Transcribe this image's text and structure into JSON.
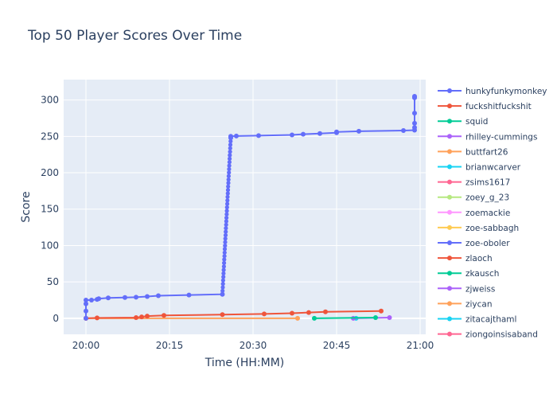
{
  "chart_data": {
    "type": "line",
    "title": "Top 50 Player Scores Over Time",
    "xlabel": "Time (HH:MM)",
    "ylabel": "Score",
    "xlim": [
      "19:56",
      "21:01"
    ],
    "ylim": [
      -22,
      328
    ],
    "x_ticks": [
      "20:00",
      "20:15",
      "20:30",
      "20:45",
      "21:00"
    ],
    "y_ticks": [
      0,
      50,
      100,
      150,
      200,
      250,
      300
    ],
    "grid": true,
    "legend_position": "right",
    "series": [
      {
        "name": "hunkyfunkymonkey",
        "color": "#636efa",
        "points": [
          [
            "20:00",
            0
          ],
          [
            "20:00",
            10
          ],
          [
            "20:00",
            20
          ],
          [
            "20:00",
            25
          ],
          [
            "20:01",
            25
          ],
          [
            "20:02",
            26
          ],
          [
            "20:02.3",
            27
          ],
          [
            "20:04",
            28
          ],
          [
            "20:07",
            28.5
          ],
          [
            "20:09",
            29
          ],
          [
            "20:11",
            30
          ],
          [
            "20:13",
            31
          ],
          [
            "20:18.5",
            32
          ],
          [
            "20:24.5",
            33
          ],
          [
            "20:26",
            248
          ],
          [
            "20:26",
            250
          ],
          [
            "20:27",
            250.5
          ],
          [
            "20:31",
            251
          ],
          [
            "20:37",
            252
          ],
          [
            "20:39",
            253
          ],
          [
            "20:42",
            254
          ],
          [
            "20:45",
            255
          ],
          [
            "20:45",
            256
          ],
          [
            "20:49",
            257
          ],
          [
            "20:57",
            258
          ],
          [
            "20:59",
            258.5
          ],
          [
            "20:59",
            262
          ],
          [
            "20:59",
            268
          ],
          [
            "20:59",
            282
          ],
          [
            "20:59",
            303
          ],
          [
            "20:59",
            304
          ],
          [
            "20:59",
            305
          ]
        ]
      },
      {
        "name": "fuckshitfuckshit",
        "color": "#ef553b",
        "points": [
          [
            "20:00",
            0
          ],
          [
            "20:02",
            0.5
          ],
          [
            "20:09",
            1
          ],
          [
            "20:10",
            2
          ],
          [
            "20:11",
            3
          ],
          [
            "20:14",
            4
          ],
          [
            "20:24.5",
            5
          ],
          [
            "20:32",
            6
          ],
          [
            "20:37",
            7
          ],
          [
            "20:40",
            8
          ],
          [
            "20:43",
            9
          ],
          [
            "20:53",
            10
          ]
        ]
      },
      {
        "name": "squid",
        "color": "#00cc96",
        "points": [
          [
            "20:41",
            0
          ],
          [
            "20:52",
            1
          ]
        ]
      },
      {
        "name": "rhilley-cummings",
        "color": "#ab63fa",
        "points": [
          [
            "20:48",
            0
          ],
          [
            "20:54.5",
            1
          ]
        ]
      },
      {
        "name": "buttfart26",
        "color": "#ffa15a",
        "points": [
          [
            "20:00",
            0
          ],
          [
            "20:38",
            0
          ]
        ]
      },
      {
        "name": "brianwcarver",
        "color": "#19d3f3",
        "points": [
          [
            "20:48.5",
            0
          ]
        ]
      },
      {
        "name": "zsims1617",
        "color": "#ff6692",
        "points": []
      },
      {
        "name": "zoey_g_23",
        "color": "#b6e880",
        "points": []
      },
      {
        "name": "zoemackie",
        "color": "#ff97ff",
        "points": []
      },
      {
        "name": "zoe-sabbagh",
        "color": "#fecb52",
        "points": []
      },
      {
        "name": "zoe-oboler",
        "color": "#636efa",
        "points": []
      },
      {
        "name": "zlaoch",
        "color": "#ef553b",
        "points": []
      },
      {
        "name": "zkausch",
        "color": "#00cc96",
        "points": []
      },
      {
        "name": "zjweiss",
        "color": "#ab63fa",
        "points": []
      },
      {
        "name": "ziycan",
        "color": "#ffa15a",
        "points": []
      },
      {
        "name": "zitacajthaml",
        "color": "#19d3f3",
        "points": []
      },
      {
        "name": "ziongoinsisaband",
        "color": "#ff6692",
        "points": []
      }
    ]
  }
}
